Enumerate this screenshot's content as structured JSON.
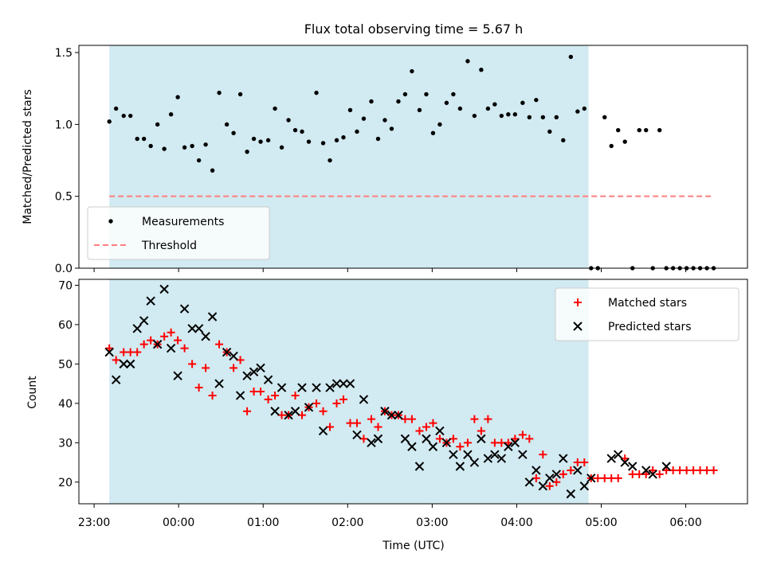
{
  "chart_data": {
    "title": "Flux total observing time = 5.67 h",
    "xlabel": "Time (UTC)",
    "x_tick_labels": [
      "23:00",
      "00:00",
      "01:00",
      "02:00",
      "03:00",
      "04:00",
      "05:00",
      "06:00"
    ],
    "x_ticks_hours": [
      -1,
      0,
      1,
      2,
      3,
      4,
      5,
      6
    ],
    "xlim_hours": [
      -1.18,
      6.73
    ],
    "shaded_region_hours": [
      -0.82,
      4.85
    ],
    "shade_color": "#add8e6",
    "panels": [
      {
        "type": "scatter",
        "ylabel": "Matched/Predicted stars",
        "ylim": [
          0,
          1.55
        ],
        "yticks": [
          0.0,
          0.5,
          1.0,
          1.5
        ],
        "ytick_labels": [
          "0.0",
          "0.5",
          "1.0",
          "1.5"
        ],
        "legend": {
          "placement": "lower-left",
          "entries": [
            "Measurements",
            "Threshold"
          ]
        },
        "series": [
          {
            "name": "Measurements",
            "marker": "dot",
            "color": "#000000",
            "x": [
              -0.82,
              -0.74,
              -0.65,
              -0.57,
              -0.49,
              -0.41,
              -0.33,
              -0.25,
              -0.17,
              -0.09,
              -0.01,
              0.07,
              0.16,
              0.24,
              0.32,
              0.4,
              0.48,
              0.57,
              0.65,
              0.73,
              0.81,
              0.89,
              0.97,
              1.06,
              1.14,
              1.22,
              1.3,
              1.38,
              1.46,
              1.54,
              1.63,
              1.71,
              1.79,
              1.87,
              1.95,
              2.03,
              2.11,
              2.19,
              2.28,
              2.36,
              2.44,
              2.52,
              2.6,
              2.68,
              2.76,
              2.85,
              2.93,
              3.01,
              3.09,
              3.17,
              3.25,
              3.33,
              3.42,
              3.5,
              3.58,
              3.66,
              3.74,
              3.82,
              3.9,
              3.98,
              4.07,
              4.15,
              4.23,
              4.31,
              4.39,
              4.47,
              4.55,
              4.64,
              4.72,
              4.8,
              4.88,
              4.96,
              5.04,
              5.12,
              5.2,
              5.28,
              5.37,
              5.45,
              5.53,
              5.61,
              5.69,
              5.77,
              5.85,
              5.93,
              6.01,
              6.09,
              6.17,
              6.25,
              6.33
            ],
            "y": [
              1.02,
              1.11,
              1.06,
              1.06,
              0.9,
              0.9,
              0.85,
              1.0,
              0.83,
              1.07,
              1.19,
              0.84,
              0.85,
              0.75,
              0.86,
              0.68,
              1.22,
              1.0,
              0.94,
              1.21,
              0.81,
              0.9,
              0.88,
              0.89,
              1.11,
              0.84,
              1.03,
              0.96,
              0.95,
              0.88,
              1.22,
              0.87,
              0.75,
              0.89,
              0.91,
              1.1,
              0.95,
              1.04,
              1.16,
              0.9,
              1.03,
              0.97,
              1.16,
              1.21,
              1.37,
              1.1,
              1.21,
              0.94,
              1.0,
              1.15,
              1.21,
              1.11,
              1.44,
              1.06,
              1.38,
              1.11,
              1.14,
              1.06,
              1.07,
              1.07,
              1.15,
              1.05,
              1.17,
              1.05,
              0.95,
              1.05,
              0.89,
              1.47,
              1.09,
              1.11,
              0.0,
              0.0,
              1.05,
              0.85,
              0.96,
              0.88,
              0.0,
              0.96,
              0.96,
              0.0,
              0.96,
              0.0,
              0.0,
              0.0,
              0.0,
              0.0,
              0.0,
              0.0,
              0.0
            ]
          },
          {
            "name": "Threshold",
            "marker": "dashed-line",
            "color": "#ff7f7f",
            "x": [
              -0.82,
              6.33
            ],
            "y": [
              0.5,
              0.5
            ]
          }
        ]
      },
      {
        "type": "scatter",
        "ylabel": "Count",
        "ylim": [
          14.5,
          71.5
        ],
        "yticks": [
          20,
          30,
          40,
          50,
          60,
          70
        ],
        "ytick_labels": [
          "20",
          "30",
          "40",
          "50",
          "60",
          "70"
        ],
        "legend": {
          "placement": "top-right",
          "entries": [
            "Matched stars",
            "Predicted stars"
          ]
        },
        "series": [
          {
            "name": "Matched stars",
            "marker": "plus",
            "color": "#ff0000",
            "x": [
              -0.82,
              -0.74,
              -0.65,
              -0.57,
              -0.49,
              -0.41,
              -0.33,
              -0.25,
              -0.17,
              -0.09,
              -0.01,
              0.07,
              0.16,
              0.24,
              0.32,
              0.4,
              0.48,
              0.57,
              0.65,
              0.73,
              0.81,
              0.89,
              0.97,
              1.06,
              1.14,
              1.22,
              1.3,
              1.38,
              1.46,
              1.54,
              1.63,
              1.71,
              1.79,
              1.87,
              1.95,
              2.03,
              2.11,
              2.19,
              2.28,
              2.36,
              2.44,
              2.52,
              2.6,
              2.68,
              2.76,
              2.85,
              2.93,
              3.01,
              3.09,
              3.17,
              3.25,
              3.33,
              3.42,
              3.5,
              3.58,
              3.66,
              3.74,
              3.82,
              3.9,
              3.98,
              4.07,
              4.15,
              4.23,
              4.31,
              4.39,
              4.47,
              4.55,
              4.64,
              4.72,
              4.8,
              4.88,
              4.96,
              5.04,
              5.12,
              5.2,
              5.28,
              5.37,
              5.45,
              5.53,
              5.61,
              5.69,
              5.77,
              5.85,
              5.93,
              6.01,
              6.09,
              6.17,
              6.25,
              6.33
            ],
            "y": [
              54,
              51,
              53,
              53,
              53,
              55,
              56,
              55,
              57,
              58,
              56,
              54,
              50,
              44,
              49,
              42,
              55,
              53,
              49,
              51,
              38,
              43,
              43,
              41,
              42,
              37,
              37,
              42,
              37,
              39,
              40,
              38,
              34,
              40,
              41,
              35,
              35,
              31,
              36,
              34,
              38,
              37,
              37,
              36,
              36,
              33,
              34,
              35,
              31,
              30,
              31,
              29,
              30,
              36,
              33,
              36,
              30,
              30,
              30,
              31,
              32,
              31,
              21,
              27,
              19,
              20,
              22,
              23,
              25,
              25,
              21,
              21,
              21,
              21,
              21,
              26,
              22,
              22,
              22,
              23,
              22,
              23,
              23,
              23,
              23,
              23,
              23,
              23,
              23
            ]
          },
          {
            "name": "Predicted stars",
            "marker": "x",
            "color": "#000000",
            "x": [
              -0.82,
              -0.74,
              -0.65,
              -0.57,
              -0.49,
              -0.41,
              -0.33,
              -0.25,
              -0.17,
              -0.09,
              -0.01,
              0.07,
              0.16,
              0.24,
              0.32,
              0.4,
              0.48,
              0.57,
              0.65,
              0.73,
              0.81,
              0.89,
              0.97,
              1.06,
              1.14,
              1.22,
              1.3,
              1.38,
              1.46,
              1.54,
              1.63,
              1.71,
              1.79,
              1.87,
              1.95,
              2.03,
              2.11,
              2.19,
              2.28,
              2.36,
              2.44,
              2.52,
              2.6,
              2.68,
              2.76,
              2.85,
              2.93,
              3.01,
              3.09,
              3.17,
              3.25,
              3.33,
              3.42,
              3.5,
              3.58,
              3.66,
              3.74,
              3.82,
              3.9,
              3.98,
              4.07,
              4.15,
              4.23,
              4.31,
              4.39,
              4.47,
              4.55,
              4.64,
              4.72,
              4.8,
              4.88,
              5.12,
              5.2,
              5.28,
              5.37,
              5.53,
              5.61,
              5.77
            ],
            "y": [
              53,
              46,
              50,
              50,
              59,
              61,
              66,
              55,
              69,
              54,
              47,
              64,
              59,
              59,
              57,
              62,
              45,
              53,
              52,
              42,
              47,
              48,
              49,
              46,
              38,
              44,
              37,
              38,
              44,
              39,
              44,
              33,
              44,
              45,
              45,
              45,
              32,
              41,
              30,
              31,
              38,
              37,
              37,
              31,
              29,
              24,
              31,
              29,
              33,
              30,
              27,
              24,
              27,
              25,
              31,
              26,
              27,
              26,
              29,
              30,
              27,
              20,
              23,
              19,
              21,
              22,
              26,
              17,
              23,
              19,
              21,
              26,
              27,
              25,
              24,
              23,
              22,
              24
            ]
          }
        ]
      }
    ]
  }
}
